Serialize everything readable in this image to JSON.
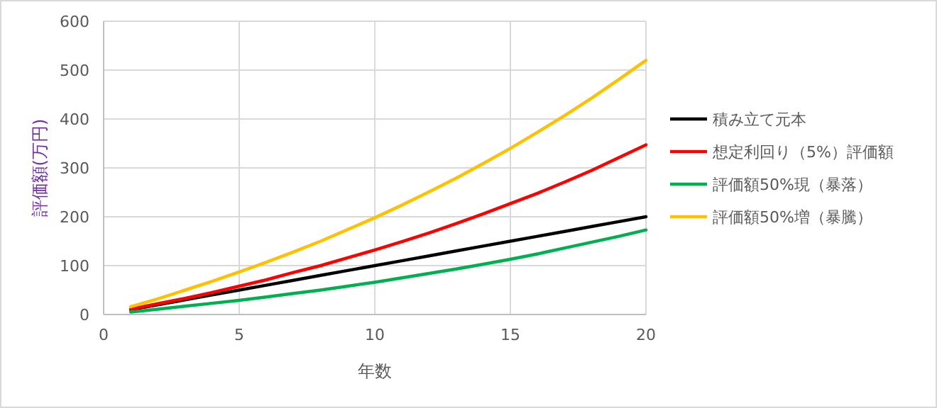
{
  "chart_data": {
    "type": "line",
    "xlabel": "年数",
    "ylabel": "評価額(万円)",
    "x": [
      1,
      2,
      3,
      4,
      5,
      6,
      7,
      8,
      9,
      10,
      11,
      12,
      13,
      14,
      15,
      16,
      17,
      18,
      19,
      20
    ],
    "xlim": [
      0,
      20
    ],
    "xticks": [
      0,
      5,
      10,
      15,
      20
    ],
    "ylim": [
      0,
      600
    ],
    "yticks": [
      0,
      100,
      200,
      300,
      400,
      500,
      600
    ],
    "grid": true,
    "legend": "right",
    "marker": "none",
    "line_style": "solid",
    "series": [
      {
        "name": "積み立て元本",
        "color": "#000000",
        "values": [
          10,
          20,
          30,
          40,
          50,
          60,
          70,
          80,
          90,
          100,
          110,
          120,
          130,
          140,
          150,
          160,
          170,
          180,
          190,
          200
        ]
      },
      {
        "name": "想定利回り（5%）評価額",
        "color": "#ff0000",
        "values": [
          11,
          22,
          33,
          45,
          58,
          71,
          86,
          100,
          116,
          132,
          149,
          167,
          186,
          206,
          227,
          248,
          271,
          295,
          321,
          347
        ]
      },
      {
        "name": "評価額50%現（暴落）",
        "color": "#00b050",
        "values": [
          5,
          11,
          17,
          23,
          29,
          36,
          43,
          50,
          58,
          66,
          75,
          84,
          93,
          103,
          113,
          124,
          136,
          148,
          160,
          173
        ]
      },
      {
        "name": "評価額50%増（暴騰）",
        "color": "#ffc000",
        "values": [
          16,
          32,
          50,
          68,
          87,
          107,
          128,
          150,
          174,
          198,
          224,
          251,
          279,
          309,
          340,
          373,
          407,
          443,
          481,
          520
        ]
      }
    ]
  }
}
